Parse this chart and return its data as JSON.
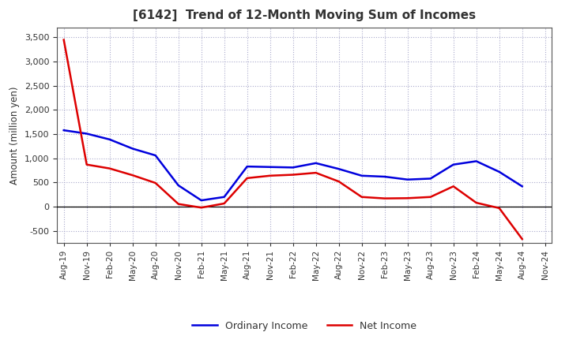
{
  "title": "[6142]  Trend of 12-Month Moving Sum of Incomes",
  "ylabel": "Amount (million yen)",
  "ylim": [
    -750,
    3700
  ],
  "yticks": [
    -500,
    0,
    500,
    1000,
    1500,
    2000,
    2500,
    3000,
    3500
  ],
  "background_color": "#ffffff",
  "plot_bg_color": "#ffffff",
  "grid_color": "#aaaacc",
  "ordinary_income_color": "#0000dd",
  "net_income_color": "#dd0000",
  "line_width": 1.8,
  "labels": [
    "Aug-19",
    "Nov-19",
    "Feb-20",
    "May-20",
    "Aug-20",
    "Nov-20",
    "Feb-21",
    "May-21",
    "Aug-21",
    "Nov-21",
    "Feb-22",
    "May-22",
    "Aug-22",
    "Nov-22",
    "Feb-23",
    "May-23",
    "Aug-23",
    "Nov-23",
    "Feb-24",
    "May-24",
    "Aug-24",
    "Nov-24"
  ],
  "ordinary_income": [
    1580,
    1510,
    1390,
    1200,
    1060,
    440,
    130,
    200,
    830,
    820,
    810,
    900,
    780,
    640,
    620,
    560,
    580,
    870,
    940,
    720,
    420,
    null
  ],
  "net_income": [
    3450,
    870,
    790,
    650,
    490,
    55,
    -20,
    65,
    590,
    640,
    660,
    700,
    520,
    200,
    170,
    175,
    200,
    420,
    80,
    -30,
    -670,
    null
  ]
}
